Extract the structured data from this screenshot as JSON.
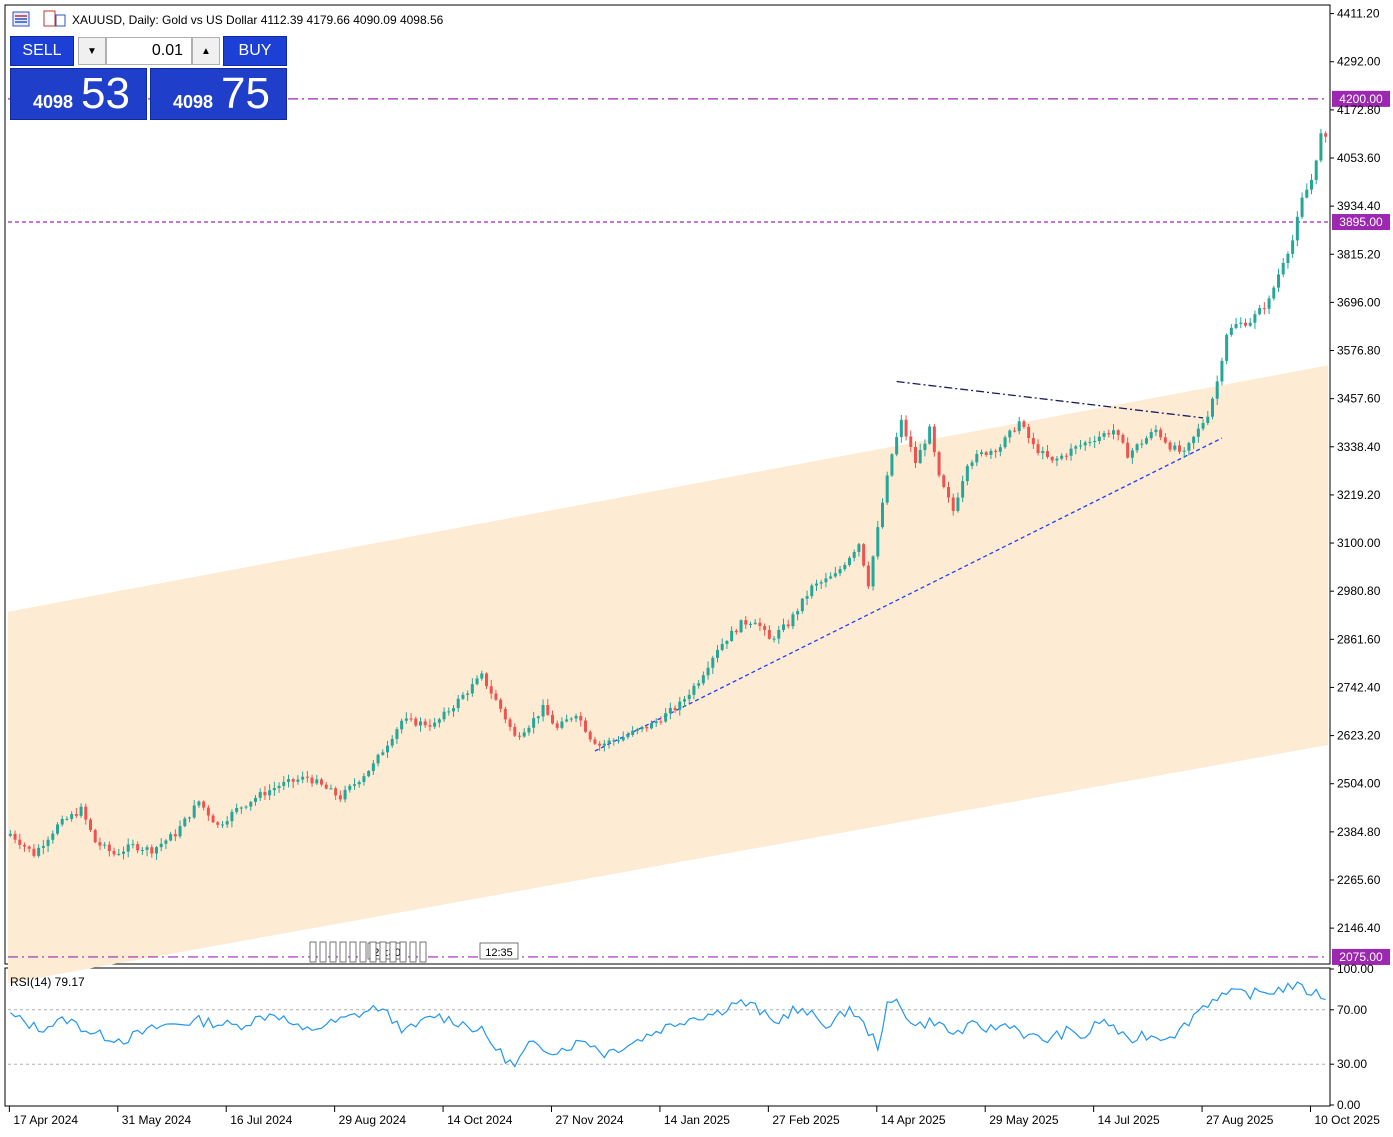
{
  "window": {
    "symbol": "XAUUSD",
    "timeframe": "Daily",
    "description": "Gold vs US Dollar",
    "ohlc": [
      "4112.39",
      "4179.66",
      "4090.09",
      "4098.56"
    ],
    "title_text": "XAUUSD, Daily:  Gold vs US Dollar  4112.39 4179.66 4090.09 4098.56"
  },
  "trade_panel": {
    "sell_label": "SELL",
    "buy_label": "BUY",
    "lot": "0.01",
    "sell_price_small": "4098",
    "sell_price_big": "53",
    "buy_price_small": "4098",
    "buy_price_big": "75",
    "down_arrow": "▼",
    "up_arrow": "▲"
  },
  "colors": {
    "up": "#26a69a",
    "down": "#ef5350",
    "level_line": "#9c27b0",
    "level_label_bg": "#9c27b0",
    "channel_fill": "#fdebd3",
    "trend_support": "#1e3cff",
    "trend_resistance": "#1a1a5e",
    "rsi_line": "#2196f3"
  },
  "chart_data": [
    {
      "type": "candlestick",
      "symbol": "XAUUSD",
      "timeframe": "Daily",
      "ylim": [
        2060,
        4430
      ],
      "y_ticks": [
        "4411.20",
        "4292.00",
        "4172.80",
        "4053.60",
        "3934.40",
        "3815.20",
        "3696.00",
        "3576.80",
        "3457.60",
        "3338.40",
        "3219.20",
        "3100.00",
        "2980.80",
        "2861.60",
        "2742.40",
        "2623.20",
        "2504.00",
        "2384.80",
        "2265.60",
        "2146.40"
      ],
      "x_ticks": [
        "17 Apr 2024",
        "31 May 2024",
        "16 Jul 2024",
        "29 Aug 2024",
        "14 Oct 2024",
        "27 Nov 2024",
        "14 Jan 2025",
        "27 Feb 2025",
        "14 Apr 2025",
        "29 May 2025",
        "14 Jul 2025",
        "27 Aug 2025",
        "10 Oct 2025"
      ],
      "x_tick_index": [
        0,
        23,
        46,
        69,
        92,
        115,
        138,
        161,
        184,
        207,
        230,
        253,
        276
      ],
      "horizontal_levels": [
        {
          "value": 4200.0,
          "label": "4200.00",
          "style": "dash-dot"
        },
        {
          "value": 3895.0,
          "label": "3895.00",
          "style": "dashed"
        },
        {
          "value": 2075.0,
          "label": "2075.00",
          "style": "dash-dot"
        }
      ],
      "channel": {
        "upper": {
          "start": 2930,
          "end": 3540
        },
        "lower": {
          "start": 2010,
          "end": 2600
        }
      },
      "trendlines": [
        {
          "name": "support",
          "from": {
            "i": 124,
            "price": 2585
          },
          "to": {
            "i": 257,
            "price": 3360
          }
        },
        {
          "name": "resistance",
          "from": {
            "i": 188,
            "price": 3500
          },
          "to": {
            "i": 253,
            "price": 3410
          }
        }
      ],
      "time_markers": [
        "22:30",
        "12:35"
      ],
      "anchors": [
        [
          0,
          2380
        ],
        [
          5,
          2330
        ],
        [
          10,
          2400
        ],
        [
          15,
          2440
        ],
        [
          18,
          2360
        ],
        [
          22,
          2330
        ],
        [
          26,
          2350
        ],
        [
          30,
          2340
        ],
        [
          35,
          2380
        ],
        [
          40,
          2460
        ],
        [
          44,
          2400
        ],
        [
          48,
          2440
        ],
        [
          52,
          2470
        ],
        [
          57,
          2500
        ],
        [
          63,
          2520
        ],
        [
          70,
          2470
        ],
        [
          77,
          2550
        ],
        [
          83,
          2660
        ],
        [
          90,
          2650
        ],
        [
          95,
          2710
        ],
        [
          100,
          2770
        ],
        [
          104,
          2690
        ],
        [
          107,
          2620
        ],
        [
          110,
          2650
        ],
        [
          113,
          2690
        ],
        [
          116,
          2640
        ],
        [
          120,
          2680
        ],
        [
          123,
          2620
        ],
        [
          125,
          2600
        ],
        [
          130,
          2620
        ],
        [
          136,
          2650
        ],
        [
          142,
          2700
        ],
        [
          146,
          2760
        ],
        [
          150,
          2840
        ],
        [
          155,
          2900
        ],
        [
          158,
          2910
        ],
        [
          161,
          2860
        ],
        [
          165,
          2900
        ],
        [
          170,
          2990
        ],
        [
          175,
          3020
        ],
        [
          180,
          3100
        ],
        [
          182,
          3000
        ],
        [
          185,
          3200
        ],
        [
          187,
          3320
        ],
        [
          189,
          3400
        ],
        [
          192,
          3300
        ],
        [
          195,
          3380
        ],
        [
          197,
          3260
        ],
        [
          200,
          3180
        ],
        [
          203,
          3300
        ],
        [
          206,
          3320
        ],
        [
          210,
          3340
        ],
        [
          214,
          3400
        ],
        [
          217,
          3340
        ],
        [
          221,
          3300
        ],
        [
          225,
          3330
        ],
        [
          230,
          3360
        ],
        [
          234,
          3380
        ],
        [
          237,
          3320
        ],
        [
          240,
          3350
        ],
        [
          243,
          3380
        ],
        [
          246,
          3340
        ],
        [
          249,
          3320
        ],
        [
          252,
          3380
        ],
        [
          254,
          3420
        ],
        [
          256,
          3500
        ],
        [
          258,
          3620
        ],
        [
          260,
          3640
        ],
        [
          263,
          3650
        ],
        [
          267,
          3700
        ],
        [
          270,
          3800
        ],
        [
          272,
          3850
        ],
        [
          274,
          3950
        ],
        [
          276,
          4000
        ],
        [
          278,
          4110
        ],
        [
          279,
          4098
        ]
      ]
    },
    {
      "type": "line",
      "name": "RSI(14)",
      "title": "RSI(14) 79.17",
      "value": 79.17,
      "ylim": [
        0,
        100
      ],
      "y_ticks": [
        "100.00",
        "70.00",
        "30.00",
        "0.00"
      ],
      "levels": [
        70,
        30
      ],
      "anchors": [
        [
          0,
          66
        ],
        [
          6,
          56
        ],
        [
          12,
          63
        ],
        [
          18,
          52
        ],
        [
          24,
          48
        ],
        [
          32,
          58
        ],
        [
          40,
          62
        ],
        [
          48,
          58
        ],
        [
          56,
          68
        ],
        [
          62,
          54
        ],
        [
          70,
          62
        ],
        [
          78,
          72
        ],
        [
          84,
          54
        ],
        [
          90,
          66
        ],
        [
          96,
          60
        ],
        [
          100,
          54
        ],
        [
          104,
          38
        ],
        [
          107,
          28
        ],
        [
          110,
          44
        ],
        [
          116,
          40
        ],
        [
          122,
          48
        ],
        [
          126,
          38
        ],
        [
          132,
          46
        ],
        [
          138,
          56
        ],
        [
          144,
          64
        ],
        [
          150,
          68
        ],
        [
          154,
          76
        ],
        [
          158,
          72
        ],
        [
          162,
          60
        ],
        [
          166,
          70
        ],
        [
          170,
          66
        ],
        [
          174,
          58
        ],
        [
          178,
          72
        ],
        [
          182,
          54
        ],
        [
          184,
          44
        ],
        [
          186,
          72
        ],
        [
          188,
          76
        ],
        [
          192,
          58
        ],
        [
          196,
          62
        ],
        [
          200,
          52
        ],
        [
          204,
          58
        ],
        [
          208,
          56
        ],
        [
          212,
          60
        ],
        [
          216,
          50
        ],
        [
          220,
          48
        ],
        [
          224,
          54
        ],
        [
          228,
          50
        ],
        [
          231,
          62
        ],
        [
          234,
          58
        ],
        [
          237,
          46
        ],
        [
          240,
          52
        ],
        [
          244,
          50
        ],
        [
          248,
          54
        ],
        [
          252,
          70
        ],
        [
          256,
          80
        ],
        [
          260,
          82
        ],
        [
          264,
          82
        ],
        [
          268,
          84
        ],
        [
          272,
          88
        ],
        [
          275,
          84
        ],
        [
          277,
          82
        ],
        [
          279,
          79
        ]
      ]
    }
  ]
}
